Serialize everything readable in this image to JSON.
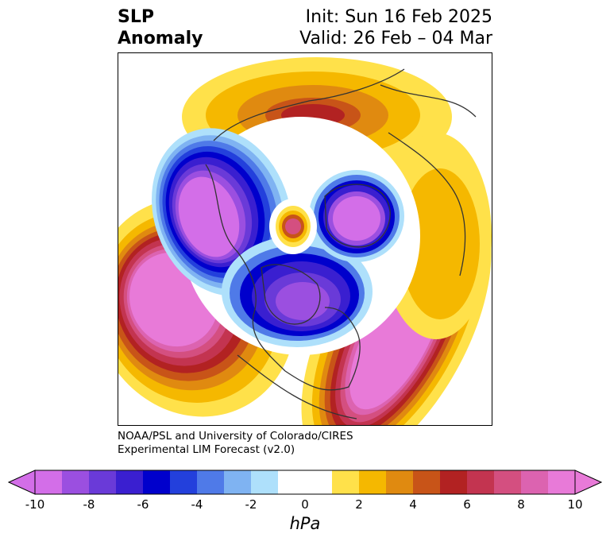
{
  "title": {
    "left_line1": "SLP",
    "left_line2": "Anomaly",
    "right_line1": "Init: Sun 16 Feb 2025",
    "right_line2": "Valid: 26 Feb – 04 Mar"
  },
  "credits": {
    "line1": "NOAA/PSL and University of Colorado/CIRES",
    "line2": "Experimental LIM Forecast (v2.0)"
  },
  "colorbar": {
    "unit_label": "hPa",
    "ticks": [
      "-10",
      "-8",
      "-6",
      "-4",
      "-2",
      "0",
      "2",
      "4",
      "6",
      "8",
      "10"
    ],
    "min": -10,
    "max": 10,
    "bin_edges": [
      -10,
      -9,
      -8,
      -7,
      -6,
      -5,
      -4,
      -3,
      -2,
      -1,
      1,
      2,
      3,
      4,
      5,
      6,
      7,
      8,
      9,
      10
    ],
    "colors": [
      "#d36ee8",
      "#9b4fe0",
      "#6a3ad8",
      "#3a1fd0",
      "#0000cc",
      "#2340dc",
      "#4f7ae8",
      "#7fb3f2",
      "#aee0fb",
      "#ffffff",
      "#ffe14a",
      "#f5b800",
      "#e08a10",
      "#c85418",
      "#b22222",
      "#c33450",
      "#d44f80",
      "#dc63b0",
      "#e87ad8"
    ],
    "under_color": "#d36ee8",
    "over_color": "#e87ad8"
  },
  "map": {
    "projection": "north-polar-stereographic",
    "features": [
      "negative anomaly over Alaska / Arctic Canada",
      "positive anomaly over the North Pacific",
      "positive anomaly over the North Atlantic",
      "negative anomaly over Hudson Bay",
      "positive anomaly over Siberia",
      "small positive anomaly near the North Pole"
    ]
  }
}
